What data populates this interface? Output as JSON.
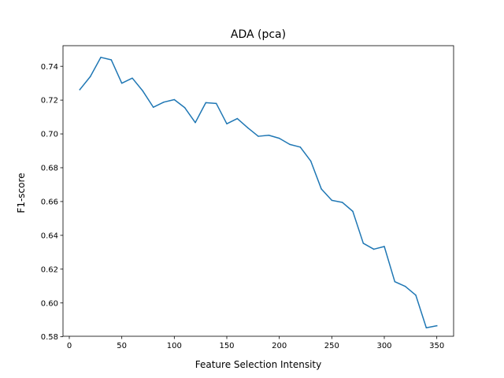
{
  "chart_data": {
    "type": "line",
    "title": "ADA (pca)",
    "xlabel": "Feature Selection Intensity",
    "ylabel": "F1-score",
    "xlim": [
      -6,
      366
    ],
    "ylim": [
      0.5803,
      0.7522
    ],
    "xticks": [
      0,
      50,
      100,
      150,
      200,
      250,
      300,
      350
    ],
    "yticks": [
      0.58,
      0.6,
      0.62,
      0.64,
      0.66,
      0.68,
      0.7,
      0.72,
      0.74
    ],
    "ytick_labels": [
      "0.58",
      "0.60",
      "0.62",
      "0.64",
      "0.66",
      "0.68",
      "0.70",
      "0.72",
      "0.74"
    ],
    "grid": false,
    "series": [
      {
        "color": "#1f77b4",
        "x": [
          10,
          20,
          30,
          40,
          50,
          60,
          70,
          80,
          90,
          100,
          110,
          120,
          130,
          140,
          150,
          160,
          170,
          180,
          190,
          200,
          210,
          220,
          230,
          240,
          250,
          260,
          270,
          280,
          290,
          300,
          310,
          320,
          330,
          340,
          350
        ],
        "y": [
          0.7262,
          0.7339,
          0.7453,
          0.7438,
          0.73,
          0.733,
          0.7254,
          0.7158,
          0.7188,
          0.7203,
          0.7155,
          0.7067,
          0.7185,
          0.718,
          0.706,
          0.7091,
          0.7036,
          0.6986,
          0.6992,
          0.6974,
          0.6938,
          0.6922,
          0.6839,
          0.6675,
          0.6607,
          0.6595,
          0.6542,
          0.6353,
          0.6318,
          0.6334,
          0.6126,
          0.6098,
          0.6046,
          0.5853,
          0.5865
        ]
      }
    ]
  }
}
